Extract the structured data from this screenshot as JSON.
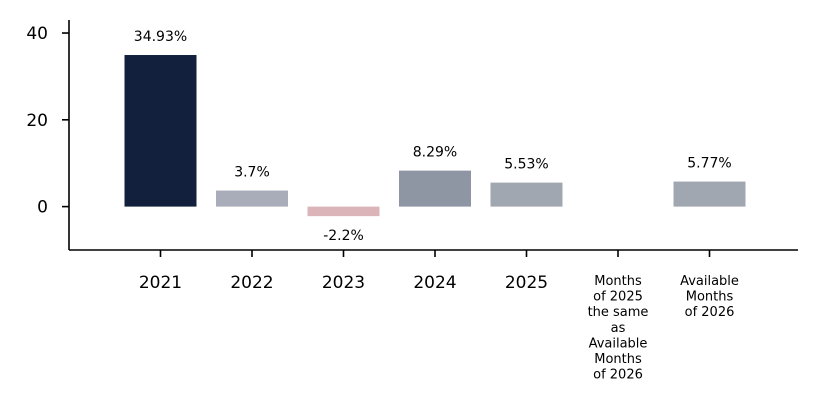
{
  "chart_data": {
    "type": "bar",
    "title": "",
    "xlabel": "",
    "ylabel": "",
    "ylim": [
      -10,
      43
    ],
    "yticks": [
      0,
      20,
      40
    ],
    "grid": false,
    "legend": "none",
    "categories": [
      "2021",
      "2022",
      "2023",
      "2024",
      "2025",
      "Months of 2025 the same as Available Months of 2026",
      "Available Months of 2026"
    ],
    "category_label_lines": [
      [
        "2021"
      ],
      [
        "2022"
      ],
      [
        "2023"
      ],
      [
        "2024"
      ],
      [
        "2025"
      ],
      [
        "Months",
        "of 2025",
        "the same",
        "as",
        "Available",
        "Months",
        "of 2026"
      ],
      [
        "Available",
        "Months",
        "of 2026"
      ]
    ],
    "values": [
      34.93,
      3.7,
      -2.2,
      8.29,
      5.53,
      null,
      5.77
    ],
    "data_labels": [
      "34.93%",
      "3.7%",
      "-2.2%",
      "8.29%",
      "5.53%",
      "",
      "5.77%"
    ],
    "colors": [
      "#121f3d",
      "#a9adb9",
      "#dbb4b9",
      "#8e96a3",
      "#a0a7b1",
      "#ffffff",
      "#a0a7b1"
    ]
  }
}
